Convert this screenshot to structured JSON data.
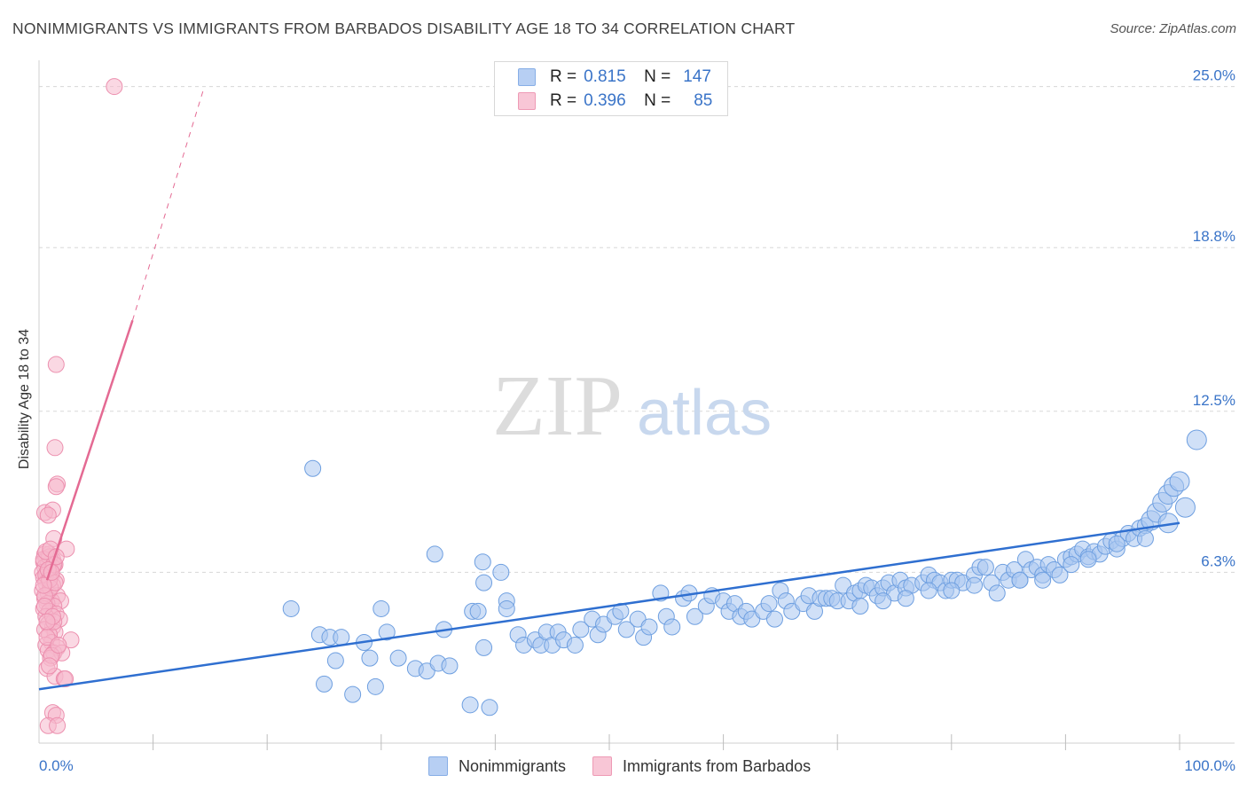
{
  "header": {
    "title": "NONIMMIGRANTS VS IMMIGRANTS FROM BARBADOS DISABILITY AGE 18 TO 34 CORRELATION CHART",
    "source": "Source: ZipAtlas.com"
  },
  "watermark": {
    "zip": "ZIP",
    "atlas": "atlas"
  },
  "legend_top": {
    "rows": [
      {
        "r_label": "R =",
        "r_value": "0.815",
        "n_label": "N =",
        "n_value": "147"
      },
      {
        "r_label": "R =",
        "r_value": "0.396",
        "n_label": "N =",
        "n_value": "85"
      }
    ]
  },
  "legend_bottom": {
    "series_a": "Nonimmigrants",
    "series_b": "Immigrants from Barbados"
  },
  "colors": {
    "blue_fill": "#a9c6f0",
    "blue_stroke": "#6e9fe0",
    "blue_line": "#2f6fd0",
    "pink_fill": "#f6b8cc",
    "pink_stroke": "#ec8fae",
    "pink_line": "#e46a93",
    "tick_text": "#3a74c8",
    "grid": "#d8d8d8"
  },
  "chart_data": {
    "type": "scatter",
    "title": "NONIMMIGRANTS VS IMMIGRANTS FROM BARBADOS DISABILITY AGE 18 TO 34 CORRELATION CHART",
    "xlabel": "",
    "ylabel": "Disability Age 18 to 34",
    "xlim": [
      0,
      100
    ],
    "ylim": [
      0,
      25.6
    ],
    "x_tick_labels": [
      "0.0%",
      "100.0%"
    ],
    "y_ticks": [
      6.3,
      12.5,
      18.8,
      25.0
    ],
    "y_tick_labels": [
      "6.3%",
      "12.5%",
      "18.8%",
      "25.0%"
    ],
    "series": [
      {
        "name": "Nonimmigrants",
        "R": 0.815,
        "N": 147,
        "trend": {
          "x0": 0,
          "y0": 1.8,
          "x1": 100,
          "y1": 8.2
        },
        "points": [
          [
            22.1,
            4.9,
            1
          ],
          [
            24.0,
            10.3,
            1
          ],
          [
            24.6,
            3.9,
            1
          ],
          [
            25.5,
            3.8,
            1
          ],
          [
            26.5,
            3.8,
            1
          ],
          [
            25.0,
            2.0,
            1
          ],
          [
            26.0,
            2.9,
            1
          ],
          [
            27.5,
            1.6,
            1
          ],
          [
            28.5,
            3.6,
            1
          ],
          [
            29.5,
            1.9,
            1
          ],
          [
            30.0,
            4.9,
            1
          ],
          [
            30.5,
            4.0,
            1
          ],
          [
            29.0,
            3.0,
            1
          ],
          [
            31.5,
            3.0,
            1
          ],
          [
            33.0,
            2.6,
            1
          ],
          [
            34.0,
            2.5,
            1
          ],
          [
            35.0,
            2.8,
            1
          ],
          [
            36.0,
            2.7,
            1
          ],
          [
            35.5,
            4.1,
            1
          ],
          [
            34.7,
            7.0,
            1
          ],
          [
            37.8,
            1.2,
            1
          ],
          [
            38.0,
            4.8,
            1
          ],
          [
            38.5,
            4.8,
            1
          ],
          [
            39.5,
            1.1,
            1
          ],
          [
            39.0,
            3.4,
            1
          ],
          [
            39.0,
            5.9,
            1
          ],
          [
            38.9,
            6.7,
            1
          ],
          [
            40.5,
            6.3,
            1
          ],
          [
            41.0,
            5.2,
            1
          ],
          [
            41.0,
            4.9,
            1
          ],
          [
            42.0,
            3.9,
            1
          ],
          [
            42.5,
            3.5,
            1
          ],
          [
            43.5,
            3.7,
            1
          ],
          [
            44.0,
            3.5,
            1
          ],
          [
            44.5,
            4.0,
            1
          ],
          [
            45.0,
            3.5,
            1
          ],
          [
            45.5,
            4.0,
            1
          ],
          [
            46.0,
            3.7,
            1
          ],
          [
            47.0,
            3.5,
            1
          ],
          [
            47.5,
            4.1,
            1
          ],
          [
            48.5,
            4.5,
            1
          ],
          [
            49.0,
            3.9,
            1
          ],
          [
            49.5,
            4.3,
            1
          ],
          [
            50.5,
            4.6,
            1
          ],
          [
            51.0,
            4.8,
            1
          ],
          [
            51.5,
            4.1,
            1
          ],
          [
            52.5,
            4.5,
            1
          ],
          [
            53.0,
            3.8,
            1
          ],
          [
            53.5,
            4.2,
            1
          ],
          [
            54.5,
            5.5,
            1
          ],
          [
            55.0,
            4.6,
            1
          ],
          [
            55.5,
            4.2,
            1
          ],
          [
            56.5,
            5.3,
            1
          ],
          [
            57.0,
            5.5,
            1
          ],
          [
            57.5,
            4.6,
            1
          ],
          [
            58.5,
            5.0,
            1
          ],
          [
            59.0,
            5.4,
            1
          ],
          [
            60.0,
            5.2,
            1
          ],
          [
            60.5,
            4.8,
            1
          ],
          [
            61.0,
            5.1,
            1
          ],
          [
            61.5,
            4.6,
            1
          ],
          [
            62.0,
            4.8,
            1
          ],
          [
            62.5,
            4.5,
            1
          ],
          [
            63.5,
            4.8,
            1
          ],
          [
            64.0,
            5.1,
            1
          ],
          [
            64.5,
            4.5,
            1
          ],
          [
            65.0,
            5.6,
            1
          ],
          [
            65.5,
            5.2,
            1
          ],
          [
            66.0,
            4.8,
            1
          ],
          [
            67.0,
            5.1,
            1
          ],
          [
            67.5,
            5.4,
            1
          ],
          [
            68.0,
            4.8,
            1
          ],
          [
            68.5,
            5.3,
            1
          ],
          [
            69.0,
            5.3,
            1
          ],
          [
            69.5,
            5.3,
            1
          ],
          [
            70.0,
            5.2,
            1
          ],
          [
            70.5,
            5.8,
            1
          ],
          [
            71.0,
            5.2,
            1
          ],
          [
            71.5,
            5.5,
            1
          ],
          [
            72.0,
            5.6,
            1
          ],
          [
            72.5,
            5.8,
            1
          ],
          [
            73.0,
            5.7,
            1
          ],
          [
            73.5,
            5.4,
            1
          ],
          [
            74.0,
            5.7,
            1
          ],
          [
            74.5,
            5.9,
            1
          ],
          [
            75.0,
            5.5,
            1
          ],
          [
            75.5,
            6.0,
            1
          ],
          [
            76.0,
            5.7,
            1
          ],
          [
            76.5,
            5.8,
            1
          ],
          [
            77.5,
            5.9,
            1
          ],
          [
            78.0,
            6.2,
            1
          ],
          [
            78.5,
            6.0,
            1
          ],
          [
            79.0,
            5.9,
            1
          ],
          [
            79.5,
            5.6,
            1
          ],
          [
            80.0,
            6.0,
            1
          ],
          [
            80.5,
            6.0,
            1
          ],
          [
            81.0,
            5.9,
            1
          ],
          [
            82.0,
            6.2,
            1
          ],
          [
            82.5,
            6.5,
            1
          ],
          [
            83.0,
            6.5,
            1
          ],
          [
            83.5,
            5.9,
            1
          ],
          [
            84.5,
            6.3,
            1
          ],
          [
            85.0,
            6.0,
            1
          ],
          [
            85.5,
            6.4,
            1
          ],
          [
            86.0,
            6.0,
            1
          ],
          [
            86.5,
            6.8,
            1
          ],
          [
            87.0,
            6.4,
            1
          ],
          [
            87.5,
            6.5,
            1
          ],
          [
            88.0,
            6.2,
            1
          ],
          [
            88.5,
            6.6,
            1
          ],
          [
            89.0,
            6.4,
            1
          ],
          [
            89.5,
            6.2,
            1
          ],
          [
            90.0,
            6.8,
            1
          ],
          [
            90.5,
            6.9,
            1
          ],
          [
            91.0,
            7.0,
            1
          ],
          [
            91.5,
            7.2,
            1
          ],
          [
            92.0,
            6.9,
            1
          ],
          [
            92.5,
            7.1,
            1
          ],
          [
            93.0,
            7.0,
            1
          ],
          [
            93.5,
            7.3,
            1
          ],
          [
            94.0,
            7.5,
            1
          ],
          [
            94.5,
            7.2,
            1
          ],
          [
            95.0,
            7.6,
            1
          ],
          [
            95.5,
            7.8,
            1
          ],
          [
            96.0,
            7.6,
            1
          ],
          [
            96.5,
            8.0,
            1
          ],
          [
            97.0,
            8.1,
            1
          ],
          [
            97.5,
            8.3,
            1
          ],
          [
            98.0,
            8.6,
            1
          ],
          [
            98.5,
            9.0,
            1
          ],
          [
            99.0,
            9.3,
            1
          ],
          [
            99.5,
            9.6,
            1
          ],
          [
            100.0,
            9.8,
            1
          ],
          [
            101.5,
            11.4,
            1
          ],
          [
            100.5,
            8.8,
            1
          ],
          [
            99.0,
            8.2,
            1
          ],
          [
            97.0,
            7.6,
            1
          ],
          [
            94.5,
            7.4,
            1
          ],
          [
            92.0,
            6.8,
            1
          ],
          [
            90.5,
            6.6,
            1
          ],
          [
            88.0,
            6.0,
            1
          ],
          [
            86.0,
            6.0,
            1
          ],
          [
            84.0,
            5.5,
            1
          ],
          [
            82.0,
            5.8,
            1
          ],
          [
            80.0,
            5.6,
            1
          ],
          [
            78.0,
            5.6,
            1
          ],
          [
            76.0,
            5.3,
            1
          ],
          [
            74.0,
            5.2,
            1
          ],
          [
            72.0,
            5.0,
            1
          ]
        ]
      },
      {
        "name": "Immigrants from Barbados",
        "R": 0.396,
        "N": 85,
        "trend": {
          "x0": 0.7,
          "y0": 6.0,
          "x1": 8.2,
          "y1": 16.0
        },
        "trend_dashed": {
          "x0": 8.2,
          "y0": 16.0,
          "x1": 14.5,
          "y1": 25.0
        },
        "points": [
          [
            6.6,
            25.0,
            1
          ],
          [
            1.5,
            14.3,
            1
          ],
          [
            1.4,
            11.1,
            1
          ],
          [
            1.6,
            9.7,
            1
          ],
          [
            1.5,
            9.6,
            1
          ],
          [
            0.5,
            8.6,
            1
          ],
          [
            1.2,
            8.7,
            1
          ],
          [
            0.8,
            8.5,
            1
          ],
          [
            1.3,
            7.6,
            1
          ],
          [
            2.4,
            7.2,
            1
          ],
          [
            0.5,
            7.0,
            1
          ],
          [
            0.9,
            7.0,
            1
          ],
          [
            1.0,
            6.9,
            1
          ],
          [
            0.6,
            6.8,
            1
          ],
          [
            1.2,
            6.8,
            1
          ],
          [
            0.4,
            6.7,
            1
          ],
          [
            0.8,
            6.6,
            1
          ],
          [
            1.4,
            6.6,
            1
          ],
          [
            0.5,
            6.5,
            1
          ],
          [
            1.0,
            6.4,
            1
          ],
          [
            0.3,
            6.3,
            1
          ],
          [
            0.7,
            6.3,
            1
          ],
          [
            1.1,
            6.2,
            1
          ],
          [
            0.4,
            6.1,
            1
          ],
          [
            0.9,
            6.1,
            1
          ],
          [
            1.5,
            6.0,
            1
          ],
          [
            0.6,
            5.9,
            1
          ],
          [
            1.2,
            5.8,
            1
          ],
          [
            0.3,
            5.6,
            1
          ],
          [
            0.8,
            5.5,
            1
          ],
          [
            1.6,
            5.4,
            1
          ],
          [
            0.5,
            5.3,
            1
          ],
          [
            1.1,
            5.2,
            1
          ],
          [
            1.9,
            5.2,
            1
          ],
          [
            0.7,
            5.1,
            1
          ],
          [
            1.3,
            5.0,
            1
          ],
          [
            0.4,
            4.9,
            1
          ],
          [
            0.9,
            4.8,
            1
          ],
          [
            1.5,
            4.7,
            1
          ],
          [
            0.6,
            4.6,
            1
          ],
          [
            1.8,
            4.5,
            1
          ],
          [
            0.8,
            4.3,
            1
          ],
          [
            1.2,
            4.2,
            1
          ],
          [
            0.5,
            4.1,
            1
          ],
          [
            1.4,
            4.0,
            1
          ],
          [
            0.9,
            3.9,
            1
          ],
          [
            2.8,
            3.7,
            1
          ],
          [
            1.1,
            3.6,
            1
          ],
          [
            0.6,
            3.5,
            1
          ],
          [
            1.6,
            3.4,
            1
          ],
          [
            0.8,
            3.3,
            1
          ],
          [
            1.3,
            3.2,
            1
          ],
          [
            2.0,
            3.2,
            1
          ],
          [
            1.0,
            3.0,
            1
          ],
          [
            0.7,
            2.6,
            1
          ],
          [
            1.4,
            2.3,
            1
          ],
          [
            2.2,
            2.2,
            1
          ],
          [
            2.3,
            2.2,
            1
          ],
          [
            1.2,
            0.9,
            1
          ],
          [
            1.5,
            0.8,
            1
          ],
          [
            0.8,
            0.4,
            1
          ],
          [
            1.6,
            0.4,
            1
          ],
          [
            0.9,
            6.9,
            1
          ],
          [
            1.2,
            6.5,
            1
          ],
          [
            0.6,
            6.2,
            1
          ],
          [
            1.0,
            5.7,
            1
          ],
          [
            0.5,
            5.4,
            1
          ],
          [
            1.3,
            4.4,
            1
          ],
          [
            0.7,
            3.8,
            1
          ],
          [
            1.1,
            3.1,
            1
          ],
          [
            0.4,
            6.8,
            1
          ],
          [
            0.9,
            6.0,
            1
          ],
          [
            1.3,
            6.6,
            1
          ],
          [
            0.6,
            7.1,
            1
          ],
          [
            1.0,
            7.2,
            1
          ],
          [
            0.8,
            6.4,
            1
          ],
          [
            1.4,
            5.9,
            1
          ],
          [
            0.5,
            5.0,
            1
          ],
          [
            1.2,
            4.6,
            1
          ],
          [
            0.7,
            4.4,
            1
          ],
          [
            1.7,
            3.5,
            1
          ],
          [
            0.9,
            2.7,
            1
          ],
          [
            1.1,
            6.3,
            1
          ],
          [
            0.4,
            5.8,
            1
          ],
          [
            1.5,
            6.9,
            1
          ]
        ]
      }
    ]
  }
}
